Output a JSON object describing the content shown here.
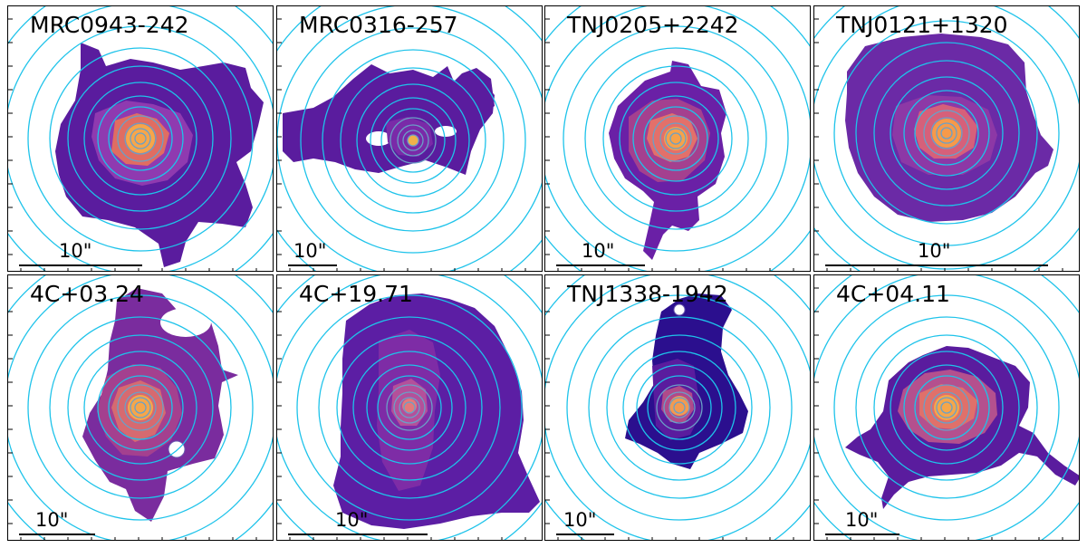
{
  "figure": {
    "panels": [
      {
        "name": "MRC0943-242",
        "scale_label": "10\"",
        "colors": {
          "outer": "#5a1c9e",
          "mid": "#8f3ab0",
          "inner": "#e06d62",
          "core": "#f6a64a"
        }
      },
      {
        "name": "MRC0316-257",
        "scale_label": "10\"",
        "colors": {
          "outer": "#5a1c9e",
          "mid": "#7a2aa8",
          "inner": "#b0468f",
          "core": "#f0b14a"
        }
      },
      {
        "name": "TNJ0205+2242",
        "scale_label": "10\"",
        "colors": {
          "outer": "#6a20a6",
          "mid": "#a4408f",
          "inner": "#e3706a",
          "core": "#f6a24a"
        }
      },
      {
        "name": "TNJ0121+1320",
        "scale_label": "10\"",
        "colors": {
          "outer": "#6b2aa6",
          "mid": "#8d38a6",
          "inner": "#d6607a",
          "core": "#f69a4a"
        }
      },
      {
        "name": "4C+03.24",
        "scale_label": "10\"",
        "colors": {
          "outer": "#7a2c9e",
          "mid": "#a4408f",
          "inner": "#d66a70",
          "core": "#f6a64a"
        }
      },
      {
        "name": "4C+19.71",
        "scale_label": "10\"",
        "colors": {
          "outer": "#5c1ea4",
          "mid": "#7e2ca6",
          "inner": "#b4509a",
          "core": "#e27a7c"
        }
      },
      {
        "name": "TNJ1338-1942",
        "scale_label": "10\"",
        "colors": {
          "outer": "#2b0f8e",
          "mid": "#5a1c9e",
          "inner": "#b04a8a",
          "core": "#f39a50"
        }
      },
      {
        "name": "4C+04.11",
        "scale_label": "10\"",
        "colors": {
          "outer": "#5a1c9e",
          "mid": "#b4508e",
          "inner": "#e0706a",
          "core": "#f6a64a"
        }
      }
    ],
    "ring_color": "#1ec3ea"
  }
}
